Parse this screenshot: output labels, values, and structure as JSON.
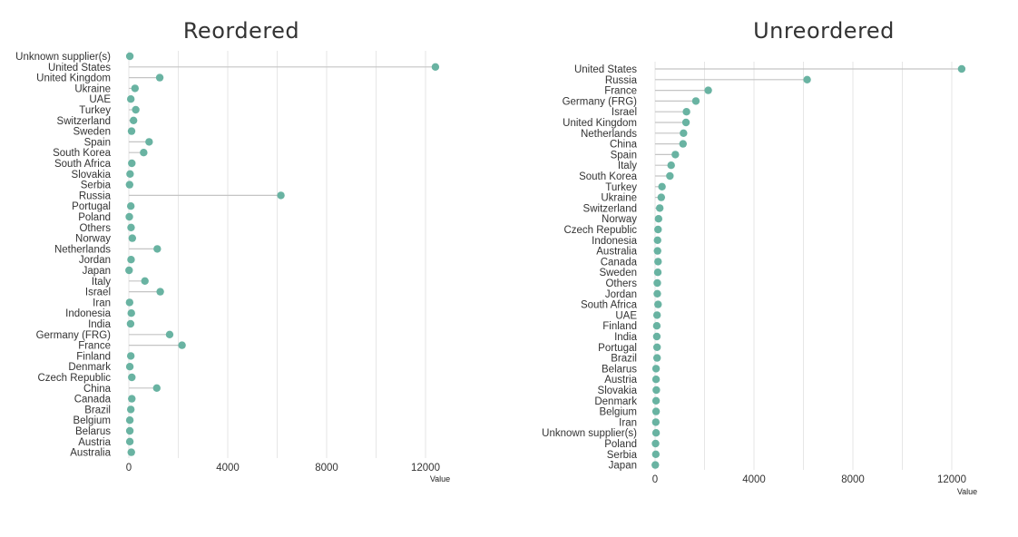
{
  "colors": {
    "point": "#69b3a2",
    "stem": "#c4c4c4",
    "grid": "#e6e6e6",
    "text": "#333333"
  },
  "chart_data": [
    {
      "type": "lollipop",
      "title": "Reordered",
      "xlabel": "Value",
      "ylabel": "",
      "xlim": [
        0,
        12500
      ],
      "xticks": [
        0,
        4000,
        8000,
        12000
      ],
      "xtick_labels": [
        "0",
        "4000",
        "8000",
        "12000"
      ],
      "grid": true,
      "categories": [
        "Unknown supplier(s)",
        "United States",
        "United Kingdom",
        "Ukraine",
        "UAE",
        "Turkey",
        "Switzerland",
        "Sweden",
        "Spain",
        "South Korea",
        "South Africa",
        "Slovakia",
        "Serbia",
        "Russia",
        "Portugal",
        "Poland",
        "Others",
        "Norway",
        "Netherlands",
        "Jordan",
        "Japan",
        "Italy",
        "Israel",
        "Iran",
        "Indonesia",
        "India",
        "Germany (FRG)",
        "France",
        "Finland",
        "Denmark",
        "Czech Republic",
        "China",
        "Canada",
        "Brazil",
        "Belgium",
        "Belarus",
        "Austria",
        "Australia"
      ],
      "values": [
        40,
        12400,
        1250,
        250,
        80,
        280,
        190,
        110,
        820,
        600,
        120,
        50,
        30,
        6150,
        80,
        20,
        90,
        140,
        1150,
        90,
        10,
        650,
        1270,
        30,
        100,
        70,
        1650,
        2150,
        80,
        40,
        120,
        1130,
        120,
        80,
        40,
        40,
        40,
        100
      ]
    },
    {
      "type": "lollipop",
      "title": "Unreordered",
      "xlabel": "Value",
      "ylabel": "",
      "xlim": [
        0,
        12500
      ],
      "xticks": [
        0,
        4000,
        8000,
        12000
      ],
      "xtick_labels": [
        "0",
        "4000",
        "8000",
        "12000"
      ],
      "grid": true,
      "categories": [
        "United States",
        "Russia",
        "France",
        "Germany (FRG)",
        "Israel",
        "United Kingdom",
        "Netherlands",
        "China",
        "Spain",
        "Italy",
        "South Korea",
        "Turkey",
        "Ukraine",
        "Switzerland",
        "Norway",
        "Czech Republic",
        "Indonesia",
        "Australia",
        "Canada",
        "Sweden",
        "Others",
        "Jordan",
        "South Africa",
        "UAE",
        "Finland",
        "India",
        "Portugal",
        "Brazil",
        "Belarus",
        "Austria",
        "Slovakia",
        "Denmark",
        "Belgium",
        "Iran",
        "Unknown supplier(s)",
        "Poland",
        "Serbia",
        "Japan"
      ],
      "values": [
        12400,
        6150,
        2150,
        1650,
        1270,
        1250,
        1150,
        1130,
        820,
        650,
        600,
        280,
        250,
        190,
        140,
        120,
        100,
        100,
        120,
        110,
        90,
        90,
        120,
        80,
        70,
        70,
        80,
        80,
        40,
        40,
        50,
        40,
        40,
        30,
        40,
        20,
        30,
        10
      ]
    }
  ]
}
